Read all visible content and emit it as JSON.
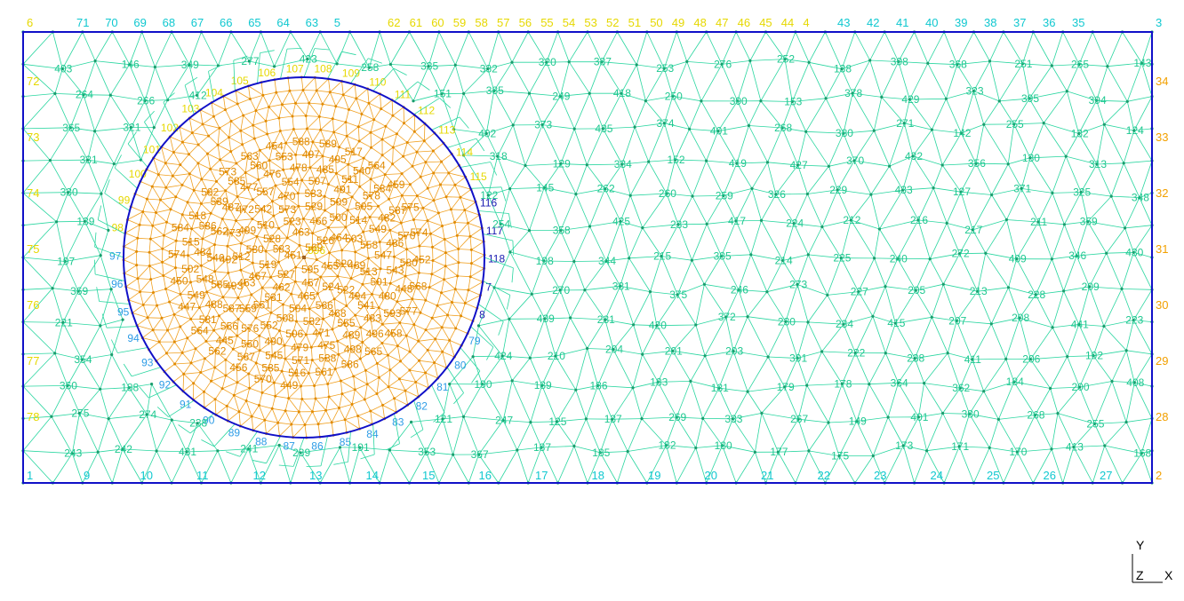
{
  "colors": {
    "background": "#ffffff",
    "domain_border": "#1010c8",
    "mesh_edge": "#2ad6a0",
    "mesh_node": "#1a9c6c",
    "inclusion_edge": "#f0a020",
    "inclusion_node": "#e08a00",
    "inclusion_boundary": "#1010c8",
    "label_cyan": "#10c8d0",
    "label_yellow": "#e6d800",
    "label_orange": "#f2a000",
    "label_blue": "#2d9ce6",
    "label_darkblue": "#1818b0",
    "label_green": "#1ec890",
    "label_inclusion": "#e08a00"
  },
  "axis_indicator": {
    "y": "Y",
    "z": "Z",
    "x": "X"
  },
  "corner_labels": {
    "bottom_left": "1",
    "bottom_right": "2",
    "top_right": "3",
    "top_left": "6"
  },
  "boundary_labels": {
    "top_cyan": [
      "71",
      "70",
      "69",
      "68",
      "67",
      "66",
      "65",
      "64",
      "63",
      "5",
      "43",
      "42",
      "41",
      "40",
      "39",
      "38",
      "37",
      "36",
      "35"
    ],
    "top_yellow": [
      "62",
      "61",
      "60",
      "59",
      "58",
      "57",
      "56",
      "55",
      "54",
      "53",
      "52",
      "51",
      "50",
      "49",
      "48",
      "47",
      "46",
      "45",
      "44",
      "4"
    ],
    "left": [
      "72",
      "73",
      "74",
      "75",
      "76",
      "77",
      "78"
    ],
    "right": [
      "34",
      "33",
      "32",
      "31",
      "30",
      "29",
      "28"
    ],
    "bottom": [
      "9",
      "10",
      "11",
      "12",
      "13",
      "14",
      "15",
      "16",
      "17",
      "18",
      "19",
      "20",
      "21",
      "22",
      "23",
      "24",
      "25",
      "26",
      "27"
    ],
    "circle": [
      "7",
      "8",
      "79",
      "80",
      "81",
      "82",
      "83",
      "84",
      "85",
      "86",
      "87",
      "88",
      "89",
      "90",
      "91",
      "92",
      "93",
      "94",
      "95",
      "96",
      "97",
      "98",
      "99",
      "100",
      "101",
      "102",
      "103",
      "104",
      "105",
      "106",
      "107",
      "108",
      "109",
      "110",
      "111",
      "112",
      "113",
      "114",
      "115",
      "116",
      "117",
      "118"
    ]
  },
  "sample_mesh_labels": [
    "403",
    "146",
    "349",
    "277",
    "423",
    "258",
    "335",
    "332",
    "320",
    "387",
    "253",
    "276",
    "252",
    "138",
    "398",
    "368",
    "251",
    "265",
    "143",
    "264",
    "266",
    "412",
    "151",
    "385",
    "249",
    "418",
    "250",
    "390",
    "153",
    "378",
    "429",
    "323",
    "395",
    "394",
    "365",
    "321",
    "402",
    "373",
    "435",
    "374",
    "401",
    "268",
    "380",
    "271",
    "142",
    "255",
    "132",
    "124",
    "331",
    "318",
    "129",
    "334",
    "152",
    "419",
    "427",
    "370",
    "432",
    "356",
    "130",
    "313",
    "330",
    "122",
    "145",
    "262",
    "260",
    "259",
    "326",
    "229",
    "433",
    "127",
    "371",
    "325",
    "348",
    "139",
    "254",
    "358",
    "425",
    "233",
    "417",
    "224",
    "212",
    "216",
    "217",
    "211",
    "359",
    "197",
    "198",
    "344",
    "215",
    "385",
    "214",
    "225",
    "240",
    "272",
    "409",
    "346",
    "430",
    "369",
    "270",
    "381",
    "375",
    "246",
    "273",
    "227",
    "205",
    "213",
    "228",
    "209",
    "221",
    "439",
    "231",
    "420",
    "372",
    "230",
    "234",
    "415",
    "207",
    "208",
    "441",
    "223",
    "354",
    "424",
    "210",
    "204",
    "201",
    "203",
    "391",
    "222",
    "238",
    "411",
    "206",
    "192",
    "360",
    "188",
    "190",
    "189",
    "186",
    "183",
    "181",
    "179",
    "178",
    "364",
    "362",
    "184",
    "200",
    "408",
    "275",
    "274",
    "238",
    "121",
    "247",
    "125",
    "137",
    "269",
    "333",
    "267",
    "149",
    "401",
    "380",
    "268",
    "255",
    "243",
    "242",
    "431",
    "241",
    "239",
    "191",
    "353",
    "367",
    "187",
    "185",
    "182",
    "180",
    "177",
    "175",
    "173",
    "171",
    "170",
    "413",
    "168",
    "218",
    "436",
    "230",
    "126",
    "241",
    "102"
  ],
  "inclusion_center_label": "596",
  "inclusion_labels_sample": [
    "595",
    "451",
    "569",
    "455",
    "457",
    "527",
    "583",
    "463",
    "526",
    "524",
    "465",
    "462",
    "519",
    "528",
    "523",
    "466",
    "464",
    "520",
    "522",
    "566",
    "504",
    "531",
    "467",
    "530",
    "510",
    "573",
    "529",
    "500",
    "503",
    "469",
    "468",
    "532",
    "508",
    "551",
    "453",
    "512",
    "499",
    "542",
    "470",
    "533",
    "509",
    "514",
    "558",
    "513",
    "494",
    "555",
    "471",
    "506",
    "552",
    "559",
    "493",
    "492",
    "473",
    "472",
    "557",
    "554",
    "507",
    "491",
    "505",
    "549",
    "547",
    "501",
    "541",
    "475",
    "479",
    "490",
    "576",
    "587",
    "585",
    "546",
    "562",
    "487",
    "477",
    "476",
    "478",
    "485",
    "511",
    "578",
    "482",
    "486",
    "543",
    "480",
    "483",
    "489",
    "538",
    "571",
    "545",
    "550",
    "556",
    "488",
    "548",
    "484",
    "536",
    "539",
    "585",
    "560",
    "553",
    "497",
    "495",
    "540",
    "534",
    "537",
    "570",
    "580",
    "448",
    "593",
    "496",
    "498",
    "516",
    "535",
    "567",
    "445",
    "581",
    "549",
    "502",
    "515",
    "518",
    "582",
    "573",
    "563",
    "454",
    "588",
    "589",
    "517",
    "564",
    "459",
    "575",
    "574",
    "452",
    "568",
    "577",
    "458",
    "565",
    "586",
    "561",
    "449",
    "570",
    "456",
    "562",
    "564",
    "447",
    "450",
    "574",
    "584"
  ]
}
